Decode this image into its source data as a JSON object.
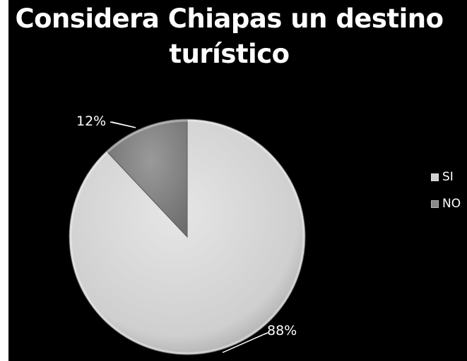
{
  "chart_data": {
    "type": "pie",
    "title": "Considera Chiapas un destino turístico",
    "categories": [
      "SI",
      "NO"
    ],
    "values": [
      88,
      12
    ],
    "labels": [
      "88%",
      "12%"
    ],
    "colors": [
      "#d0d0d0",
      "#8a8a8a"
    ],
    "legend_position": "right",
    "background": "#000000"
  }
}
